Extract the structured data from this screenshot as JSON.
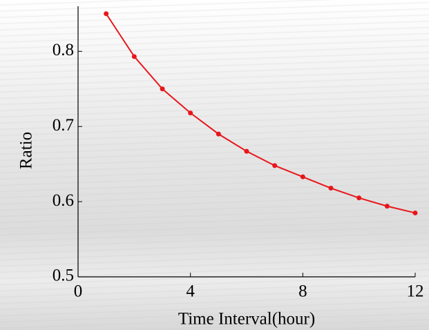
{
  "chart_data": {
    "type": "line",
    "x_label": "Time Interval(hour)",
    "y_label": "Ratio",
    "x": [
      1,
      2,
      3,
      4,
      5,
      6,
      7,
      8,
      9,
      10,
      11,
      12
    ],
    "series": [
      {
        "color": "#e8161b",
        "values": [
          0.85,
          0.793,
          0.75,
          0.718,
          0.69,
          0.667,
          0.648,
          0.633,
          0.618,
          0.605,
          0.594,
          0.585
        ]
      }
    ],
    "xlim": [
      0,
      12
    ],
    "xticks": [
      0,
      4,
      8,
      12
    ],
    "ylim": [
      0.5,
      0.86
    ],
    "yticks": [
      0.5,
      0.6,
      0.7,
      0.8
    ]
  }
}
